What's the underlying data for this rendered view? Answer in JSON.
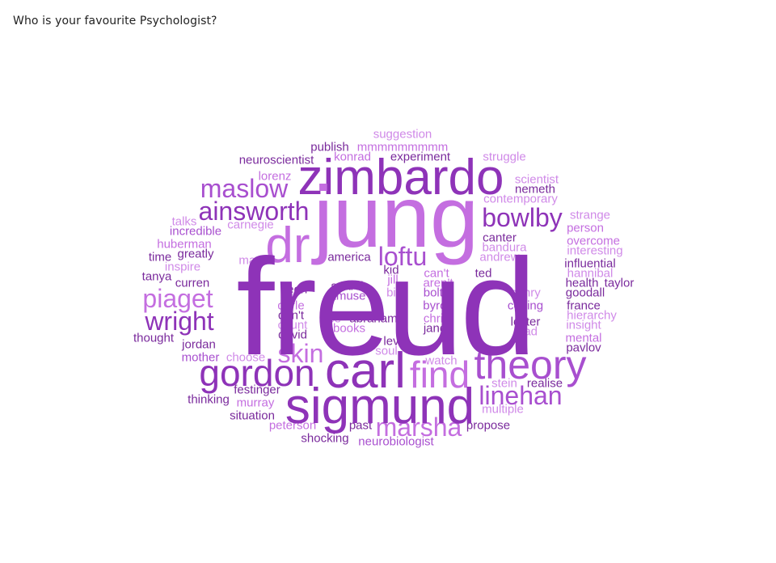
{
  "question": "Who is your favourite Psychologist?",
  "palette": {
    "dark": "#7a2a9c",
    "main": "#8e33b8",
    "mid": "#a84fcf",
    "light": "#c46ee0",
    "pale": "#d08ae8"
  },
  "words": {
    "freud": "freud",
    "jung": "jung",
    "carl": "carl",
    "sigmund": "sigmund",
    "zimbardo": "zimbardo",
    "gordon": "gordon",
    "theory": "theory",
    "find": "find",
    "dr": "dr",
    "linehan": "linehan",
    "marsha": "marsha",
    "bowlby": "bowlby",
    "ainsworth": "ainsworth",
    "maslow": "maslow",
    "piaget": "piaget",
    "wright": "wright",
    "skin": "skin",
    "loftu": "loftu",
    "suggestion": "suggestion",
    "publish": "publish",
    "mmmmmmmm": "mmmmmmmmm",
    "neuroscientist": "neuroscientist",
    "konrad": "konrad",
    "experiment": "experiment",
    "struggle": "struggle",
    "scientist": "scientist",
    "nemeth": "nemeth",
    "contemporary": "contemporary",
    "lorenz": "lorenz",
    "strange": "strange",
    "person": "person",
    "talks": "talks",
    "carnegie": "carnegie",
    "incredible": "incredible",
    "canter": "canter",
    "overcome": "overcome",
    "huberman": "huberman",
    "bandura": "bandura",
    "interesting": "interesting",
    "greatly": "greatly",
    "time": "time",
    "map": "map",
    "america": "america",
    "andrew": "andrew",
    "influential": "influential",
    "inspire": "inspire",
    "kid": "kid",
    "cant": "can't",
    "ted": "ted",
    "hannibal": "hannibal",
    "tanya": "tanya",
    "jill": "jill",
    "arent": "aren't",
    "health": "health",
    "taylor": "taylor",
    "curren": "curren",
    "leon": "leon",
    "search": "search",
    "bit": "bit",
    "bolte": "bolte",
    "henry": "henry",
    "goodall": "goodall",
    "amuse": "amuse",
    "darle": "darle",
    "byron": "byron",
    "coping": "coping",
    "france": "france",
    "dont": "don't",
    "lee": "lee",
    "abraham": "abraham",
    "chri": "chri",
    "hierarchy": "hierarchy",
    "count": "count",
    "lecter": "lecter",
    "thought": "thought",
    "david": "david",
    "books": "books",
    "jane": "jane",
    "read": "read",
    "insight": "insight",
    "lev": "lev",
    "mental": "mental",
    "jordan": "jordan",
    "soul": "soul",
    "pavlov": "pavlov",
    "mother": "mother",
    "choose": "choose",
    "watch": "watch",
    "stein": "stein",
    "festinger": "festinger",
    "realise": "realise",
    "thinking": "thinking",
    "murray": "murray",
    "multiple": "multiple",
    "situation": "situation",
    "peterson": "peterson",
    "past": "past",
    "propose": "propose",
    "shocking": "shocking",
    "neurobiologist": "neurobiologist"
  }
}
